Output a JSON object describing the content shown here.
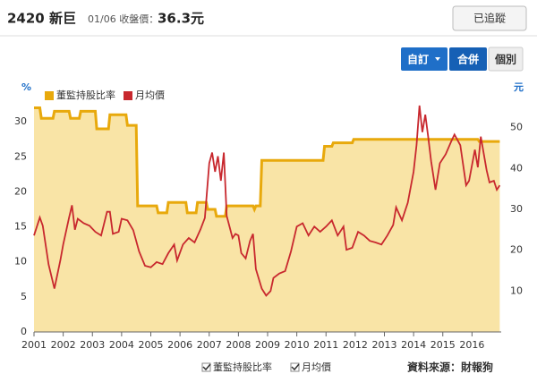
{
  "header": {
    "stock": "2420 新巨",
    "date_label": "01/06 收盤價：",
    "price": "36.3元",
    "follow_button": "已追蹤"
  },
  "toolbar": {
    "custom": "自訂",
    "merged": "合併",
    "separate": "個別"
  },
  "chart_data": {
    "type": "line",
    "ylabel": "%",
    "y2label": "元",
    "source": "資料來源：財報狗",
    "xlim": [
      2001,
      2017
    ],
    "xticks": [
      2001,
      2002,
      2003,
      2004,
      2005,
      2006,
      2007,
      2008,
      2009,
      2010,
      2011,
      2012,
      2013,
      2014,
      2015,
      2016
    ],
    "ylim": [
      0,
      35
    ],
    "yticks": [
      0,
      5,
      10,
      15,
      20,
      25,
      30
    ],
    "y2lim": [
      0,
      60
    ],
    "y2ticks": [
      10,
      20,
      30,
      40,
      50
    ],
    "legend": "top-left",
    "series": [
      {
        "name": "董監持股比率",
        "color": "#e8a90c",
        "area": true,
        "area_color": "#f9e4a6",
        "x": [
          2001.0,
          2001.2,
          2001.25,
          2001.65,
          2001.7,
          2002.2,
          2002.25,
          2002.55,
          2002.6,
          2003.1,
          2003.15,
          2003.55,
          2003.6,
          2004.15,
          2004.2,
          2004.5,
          2004.55,
          2005.2,
          2005.25,
          2005.55,
          2005.6,
          2006.2,
          2006.25,
          2006.55,
          2006.6,
          2006.9,
          2006.95,
          2007.2,
          2007.25,
          2007.55,
          2007.6,
          2008.5,
          2008.55,
          2008.6,
          2008.75,
          2008.8,
          2010.9,
          2010.95,
          2011.2,
          2011.25,
          2011.9,
          2011.95,
          2016.2,
          2016.25,
          2016.95
        ],
        "values": [
          32,
          32,
          30.5,
          30.5,
          31.5,
          31.5,
          30.5,
          30.5,
          31.5,
          31.5,
          29,
          29,
          31,
          31,
          29.5,
          29.5,
          18,
          18,
          17,
          17,
          18.5,
          18.5,
          17,
          17,
          18.5,
          18.5,
          17.5,
          17.5,
          16.5,
          16.5,
          18,
          18,
          17.5,
          18,
          18,
          24.5,
          24.5,
          26.5,
          26.5,
          27,
          27,
          27.5,
          27.5,
          27.2,
          27.2
        ]
      },
      {
        "name": "月均價",
        "color": "#c8282e",
        "axis": "y2",
        "x": [
          2001.0,
          2001.2,
          2001.3,
          2001.5,
          2001.7,
          2001.9,
          2002.0,
          2002.2,
          2002.3,
          2002.4,
          2002.5,
          2002.7,
          2002.9,
          2003.1,
          2003.3,
          2003.5,
          2003.6,
          2003.7,
          2003.9,
          2004.0,
          2004.2,
          2004.4,
          2004.6,
          2004.8,
          2005.0,
          2005.2,
          2005.4,
          2005.6,
          2005.8,
          2005.9,
          2006.1,
          2006.3,
          2006.5,
          2006.7,
          2006.85,
          2007.0,
          2007.1,
          2007.2,
          2007.3,
          2007.4,
          2007.5,
          2007.6,
          2007.8,
          2007.9,
          2008.0,
          2008.1,
          2008.25,
          2008.4,
          2008.5,
          2008.6,
          2008.8,
          2008.95,
          2009.1,
          2009.2,
          2009.4,
          2009.6,
          2009.8,
          2010.0,
          2010.2,
          2010.4,
          2010.6,
          2010.8,
          2011.0,
          2011.2,
          2011.4,
          2011.6,
          2011.7,
          2011.9,
          2012.1,
          2012.3,
          2012.5,
          2012.7,
          2012.9,
          2013.1,
          2013.3,
          2013.4,
          2013.6,
          2013.8,
          2014.0,
          2014.1,
          2014.2,
          2014.3,
          2014.4,
          2014.5,
          2014.6,
          2014.75,
          2014.9,
          2015.1,
          2015.3,
          2015.4,
          2015.6,
          2015.8,
          2015.9,
          2016.1,
          2016.2,
          2016.3,
          2016.5,
          2016.6,
          2016.75,
          2016.85,
          2016.95
        ],
        "values": [
          23.6,
          28,
          26,
          16.5,
          10.6,
          17.5,
          21.4,
          28,
          31,
          25,
          27.7,
          26.6,
          26,
          24.5,
          23.6,
          29.4,
          29.4,
          24,
          24.5,
          27.7,
          27.3,
          24.9,
          19.7,
          16.2,
          15.8,
          17.1,
          16.6,
          19.3,
          21.4,
          17.5,
          21.4,
          23,
          21.9,
          25.1,
          27.9,
          41.3,
          43.9,
          39.2,
          43,
          37,
          43.9,
          28.4,
          23,
          24,
          23.6,
          19.3,
          18,
          22.3,
          24,
          15.4,
          10.6,
          8.9,
          10,
          13.2,
          14.3,
          14.9,
          19.7,
          25.8,
          26.6,
          23.6,
          25.8,
          24.5,
          25.8,
          27.3,
          23.6,
          25.8,
          20.1,
          20.6,
          24.5,
          23.6,
          22.3,
          21.9,
          21.4,
          23.6,
          26.2,
          30.5,
          27.3,
          31.6,
          39.2,
          45.7,
          55.4,
          48.9,
          53.2,
          47.8,
          41.8,
          34.8,
          41.3,
          43.5,
          46.8,
          48.3,
          45.7,
          35.9,
          37,
          44.6,
          40.3,
          47.8,
          39.6,
          36.6,
          37,
          34.8,
          35.9
        ]
      }
    ]
  }
}
